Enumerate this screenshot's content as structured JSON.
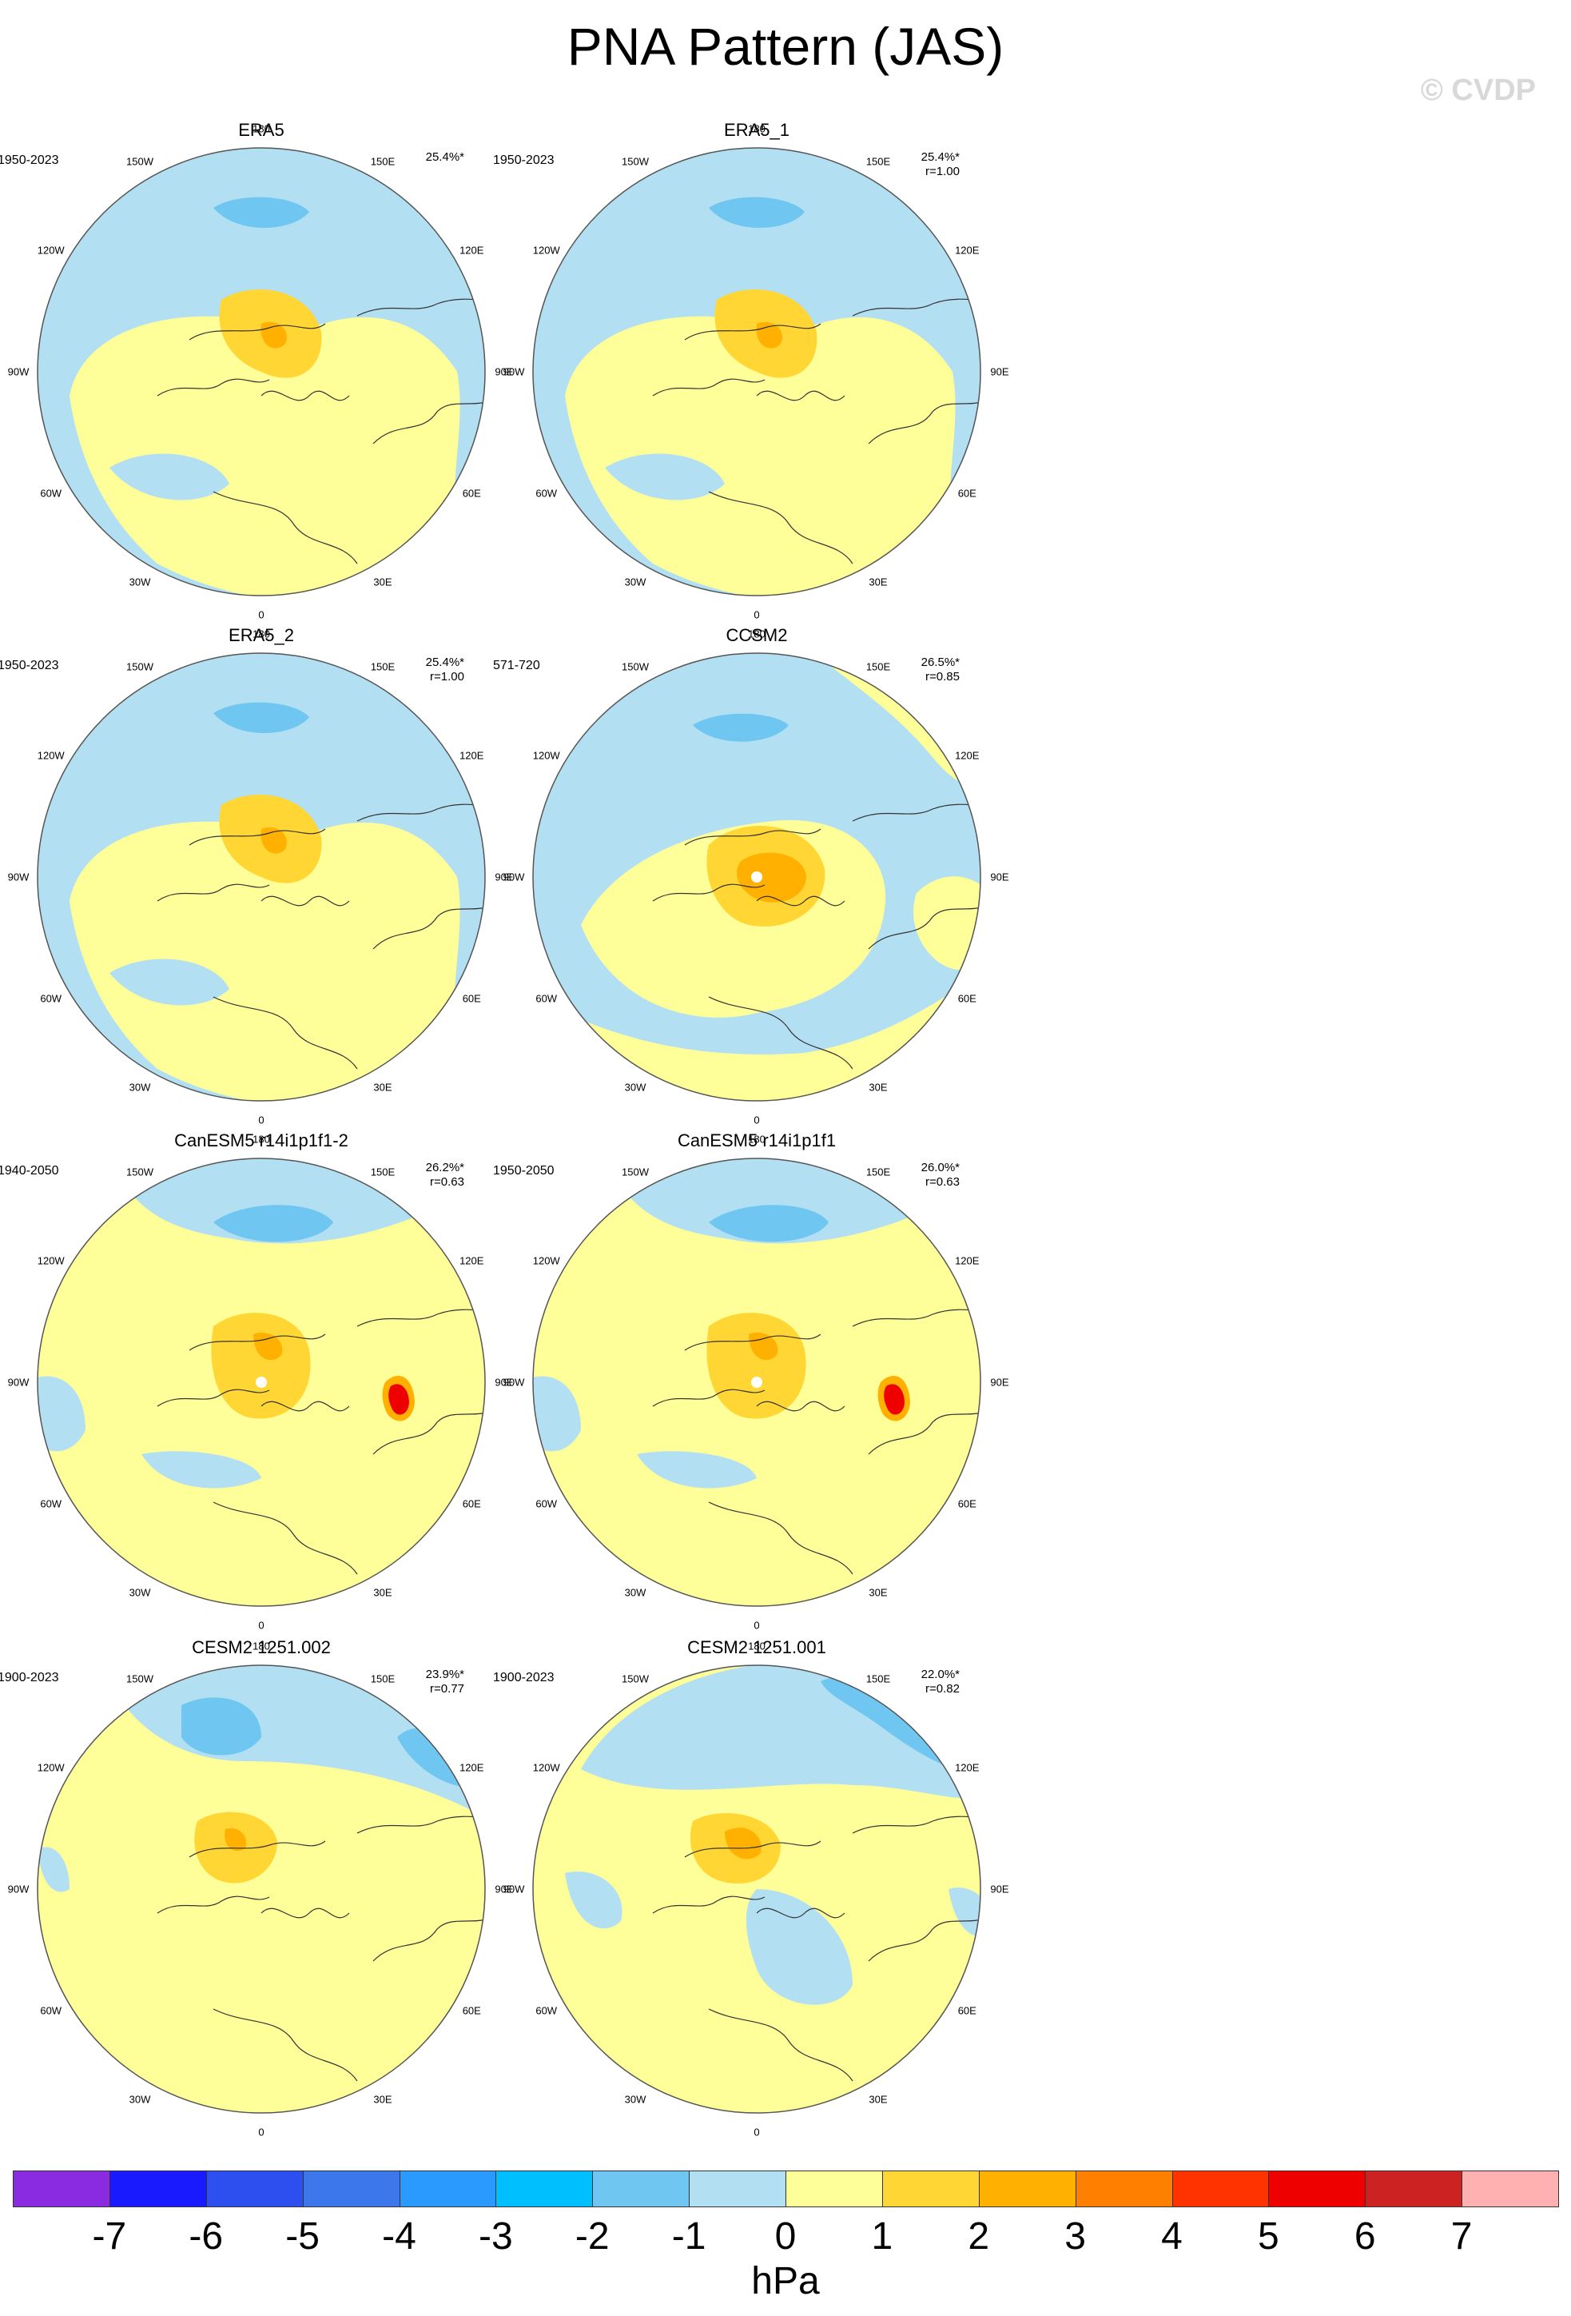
{
  "title": "PNA Pattern (JAS)",
  "watermark": "© CVDP",
  "units": "hPa",
  "lon_labels": [
    "180",
    "150E",
    "120E",
    "90E",
    "60E",
    "30E",
    "0",
    "30W",
    "60W",
    "90W",
    "120W",
    "150W"
  ],
  "colors": {
    "neg": [
      "#8a2be2",
      "#1a1aff",
      "#2e4ff0",
      "#3c78eb",
      "#2b9aff",
      "#00bfff",
      "#6fc6f0",
      "#b2dff2"
    ],
    "pos": [
      "#ffff99",
      "#ffd633",
      "#ffb000",
      "#ff8000",
      "#ff3300",
      "#ee0000",
      "#cc2222",
      "#ffb0b0"
    ],
    "coast": "#333333",
    "rim": "#555555"
  },
  "panels": [
    {
      "title": "ERA5",
      "years": "1950-2023",
      "pct": "25.4%*",
      "r": ""
    },
    {
      "title": "ERA5_1",
      "years": "1950-2023",
      "pct": "25.4%*",
      "r": "r=1.00"
    },
    {
      "title": "ERA5_2",
      "years": "1950-2023",
      "pct": "25.4%*",
      "r": "r=1.00"
    },
    {
      "title": "CCSM2",
      "years": "571-720",
      "pct": "26.5%*",
      "r": "r=0.85"
    },
    {
      "title": "CanESM5 r14i1p1f1-2",
      "years": "1940-2050",
      "pct": "26.2%*",
      "r": "r=0.63"
    },
    {
      "title": "CanESM5 r14i1p1f1",
      "years": "1950-2050",
      "pct": "26.0%*",
      "r": "r=0.63"
    },
    {
      "title": "CESM2 1251.002",
      "years": "1900-2023",
      "pct": "23.9%*",
      "r": "r=0.77"
    },
    {
      "title": "CESM2 1251.001",
      "years": "1900-2023",
      "pct": "22.0%*",
      "r": "r=0.82"
    }
  ],
  "chart_data": {
    "type": "heatmap",
    "description_type": "polar stereographic SLP regression maps",
    "colorbar": {
      "ticks": [
        "-7",
        "-6",
        "-5",
        "-4",
        "-3",
        "-2",
        "-1",
        "0",
        "1",
        "2",
        "3",
        "4",
        "5",
        "6",
        "7"
      ],
      "levels": [
        -7,
        -6,
        -5,
        -4,
        -3,
        -2,
        -1,
        0,
        1,
        2,
        3,
        4,
        5,
        6,
        7
      ]
    }
  }
}
